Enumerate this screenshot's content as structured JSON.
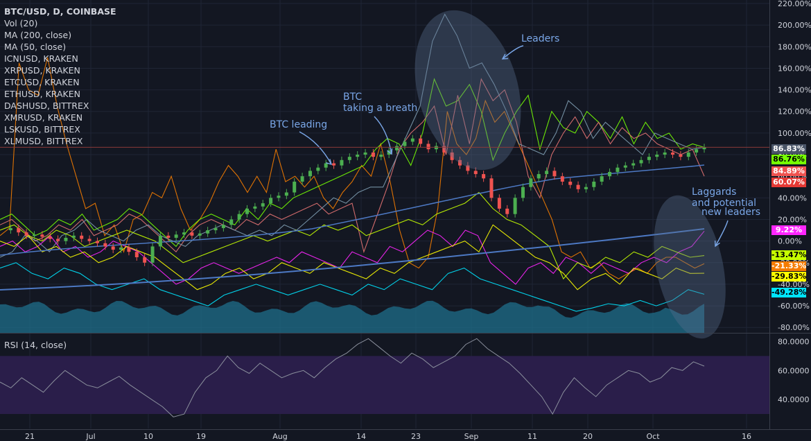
{
  "legend": {
    "title": "BTC/USD, D, COINBASE",
    "lines": [
      "Vol (20)",
      "MA (200, close)",
      "MA (50, close)",
      "ICNUSD, KRAKEN",
      "XRPUSD, KRAKEN",
      "ETCUSD, KRAKEN",
      "ETHUSD, KRAKEN",
      "DASHUSD, BITTREX",
      "XMRUSD, KRAKEN",
      "LSKUSD, BITTREX",
      "XLMUSD, BITTREX"
    ]
  },
  "rsi_label": "RSI (14, close)",
  "annotations": {
    "leaders": "Leaders",
    "btc_leading": "BTC leading",
    "btc_breath_1": "BTC",
    "btc_breath_2": "taking a breath",
    "laggards_1": "Laggards",
    "laggards_2": "and potential",
    "laggards_3": "new leaders"
  },
  "colors": {
    "background": "#131722",
    "grid": "#1f2535",
    "axis_text": "#d1d4dc",
    "up": "#26a69a",
    "candle_up": "#4caf50",
    "candle_down": "#ef5350",
    "orange": "#f57c00",
    "green": "#76ff03",
    "salmon": "#e57373",
    "slate": "#7e9cb0",
    "magenta": "#ff26ff",
    "yellow": "#ffff00",
    "lime": "#c6ff00",
    "cyan": "#00e5ff",
    "ma200": "#4d79c4",
    "ma50": "#4d79c4",
    "volume": "#1f6f8b",
    "rsi_band": "#2a1e4a",
    "annotation": "#7aa7e8",
    "highlight": "#5a6f8f"
  },
  "chart_data": [
    {
      "type": "line",
      "title": "BTC/USD, D, COINBASE",
      "y_axis_unit": "%",
      "ylim": [
        -85,
        220
      ],
      "yticks": [
        "220.00%",
        "200.00%",
        "180.00%",
        "160.00%",
        "140.00%",
        "120.00%",
        "100.00%",
        "80.00%",
        "60.00%",
        "40.00%",
        "20.00%",
        "0.00%",
        "-20.00%",
        "-40.00%",
        "-60.00%",
        "-80.00%"
      ],
      "x_tick_labels": [
        "21",
        "Jul",
        "10",
        "19",
        "Aug",
        "14",
        "23",
        "Sep",
        "11",
        "20",
        "Oct",
        "16"
      ],
      "last_value_labels": [
        {
          "text": "86.83%",
          "value": 86.83,
          "series": "BTC/USD"
        },
        {
          "text": "86.76%",
          "value": 86.76,
          "series": "green"
        },
        {
          "text": "84.89%",
          "value": 84.89,
          "series": "salmon"
        },
        {
          "text": "60.07%",
          "value": 60.07,
          "series": "salmon-dark"
        },
        {
          "text": "9.22%",
          "value": 9.22,
          "series": "magenta"
        },
        {
          "text": "-13.47%",
          "value": -13.47,
          "series": "lime"
        },
        {
          "text": "-21.33%",
          "value": -21.33,
          "series": "orange"
        },
        {
          "text": "-29.83%",
          "value": -29.83,
          "series": "yellow"
        },
        {
          "text": "-49.28%",
          "value": -49.28,
          "series": "cyan"
        }
      ],
      "series": [
        {
          "color": "orange",
          "values": [
            5,
            12,
            165,
            140,
            135,
            170,
            125,
            90,
            60,
            30,
            35,
            5,
            15,
            -10,
            20,
            25,
            45,
            40,
            60,
            30,
            10,
            20,
            35,
            55,
            70,
            60,
            45,
            60,
            45,
            85,
            55,
            60,
            50,
            60,
            40,
            30,
            45,
            55,
            70,
            60,
            90,
            55,
            10,
            -20,
            -25,
            -15,
            30,
            120,
            90,
            80,
            95,
            130,
            110,
            120,
            100,
            80,
            60,
            40,
            20,
            -10,
            -15,
            -10,
            -25,
            -20,
            -30,
            -35,
            -30,
            -25,
            -30,
            -20,
            -15,
            -15,
            -20,
            -25,
            -21
          ]
        },
        {
          "color": "green",
          "values": [
            20,
            25,
            15,
            5,
            10,
            20,
            15,
            25,
            10,
            15,
            20,
            30,
            25,
            15,
            5,
            -5,
            10,
            20,
            25,
            20,
            15,
            30,
            20,
            35,
            30,
            40,
            45,
            50,
            55,
            60,
            65,
            70,
            85,
            95,
            90,
            70,
            100,
            150,
            125,
            130,
            145,
            120,
            75,
            100,
            120,
            135,
            85,
            120,
            105,
            100,
            120,
            110,
            95,
            115,
            90,
            110,
            95,
            100,
            85,
            90,
            86.76
          ]
        },
        {
          "color": "salmon",
          "values": [
            15,
            20,
            10,
            0,
            5,
            15,
            10,
            20,
            5,
            10,
            15,
            25,
            20,
            10,
            0,
            -10,
            5,
            15,
            20,
            15,
            10,
            20,
            15,
            25,
            20,
            25,
            30,
            35,
            25,
            30,
            35,
            -10,
            20,
            50,
            85,
            100,
            110,
            125,
            80,
            135,
            90,
            150,
            130,
            140,
            110,
            60,
            40,
            80,
            100,
            115,
            95,
            110,
            90,
            105,
            95,
            100,
            90,
            85,
            80,
            84.89,
            60.07
          ]
        },
        {
          "color": "slate",
          "values": [
            -15,
            -10,
            5,
            0,
            -10,
            5,
            10,
            20,
            10,
            5,
            0,
            10,
            15,
            5,
            0,
            -5,
            5,
            10,
            15,
            10,
            5,
            10,
            5,
            15,
            10,
            20,
            30,
            40,
            35,
            45,
            50,
            50,
            75,
            100,
            125,
            185,
            210,
            190,
            160,
            165,
            145,
            120,
            90,
            85,
            80,
            100,
            130,
            120,
            95,
            110,
            100,
            90,
            80,
            100,
            95,
            90,
            85,
            86.83
          ]
        },
        {
          "color": "magenta",
          "values": [
            -5,
            0,
            -10,
            -5,
            5,
            -10,
            -5,
            -15,
            -10,
            0,
            -5,
            -10,
            -20,
            -30,
            -40,
            -35,
            -25,
            -20,
            -25,
            -30,
            -25,
            -20,
            -15,
            -20,
            -10,
            -15,
            -20,
            -25,
            -10,
            -15,
            -20,
            -5,
            -10,
            0,
            10,
            5,
            -5,
            10,
            5,
            -20,
            -30,
            -40,
            -25,
            -20,
            -30,
            -15,
            -20,
            -30,
            -20,
            -25,
            -30,
            -20,
            -15,
            -20,
            -10,
            -5,
            9.22
          ]
        },
        {
          "color": "yellow",
          "values": [
            0,
            -5,
            5,
            -10,
            -5,
            -15,
            -10,
            -20,
            -15,
            -5,
            -10,
            -15,
            -25,
            -35,
            -45,
            -40,
            -30,
            -25,
            -35,
            -30,
            -20,
            -25,
            -30,
            -20,
            -25,
            -30,
            -35,
            -25,
            -30,
            -20,
            -15,
            -10,
            -5,
            0,
            -10,
            15,
            5,
            -5,
            -15,
            -20,
            -30,
            -45,
            -35,
            -30,
            -40,
            -25,
            -30,
            -35,
            -25,
            -30,
            -29.83
          ]
        },
        {
          "color": "lime",
          "values": [
            10,
            15,
            5,
            0,
            10,
            5,
            -5,
            0,
            5,
            10,
            5,
            0,
            -10,
            -20,
            -15,
            -10,
            -5,
            0,
            5,
            0,
            5,
            10,
            5,
            15,
            10,
            15,
            5,
            10,
            15,
            20,
            15,
            25,
            30,
            35,
            45,
            30,
            20,
            15,
            5,
            -5,
            -35,
            -20,
            -25,
            -15,
            -20,
            -10,
            -15,
            -5,
            -10,
            -15,
            -13.47
          ]
        },
        {
          "color": "cyan",
          "values": [
            -25,
            -20,
            -30,
            -35,
            -25,
            -30,
            -40,
            -45,
            -40,
            -35,
            -45,
            -50,
            -55,
            -60,
            -50,
            -45,
            -40,
            -45,
            -50,
            -45,
            -40,
            -45,
            -50,
            -40,
            -45,
            -35,
            -40,
            -45,
            -30,
            -25,
            -35,
            -40,
            -45,
            -50,
            -55,
            -60,
            -65,
            -62,
            -58,
            -60,
            -55,
            -60,
            -55,
            -45,
            -49.28
          ]
        }
      ]
    },
    {
      "type": "line",
      "title": "RSI (14, close)",
      "ylim": [
        20,
        85
      ],
      "yticks": [
        "80.0000",
        "60.0000",
        "40.0000"
      ],
      "band": [
        30,
        70
      ],
      "values": [
        52,
        48,
        55,
        50,
        45,
        53,
        60,
        55,
        50,
        48,
        52,
        56,
        50,
        45,
        40,
        35,
        28,
        30,
        45,
        55,
        60,
        70,
        62,
        58,
        65,
        60,
        55,
        58,
        60,
        55,
        62,
        68,
        72,
        78,
        82,
        76,
        70,
        65,
        72,
        68,
        62,
        66,
        70,
        78,
        82,
        75,
        70,
        65,
        58,
        50,
        42,
        30,
        45,
        55,
        48,
        42,
        50,
        55,
        60,
        58,
        52,
        55,
        62,
        60,
        66,
        63
      ]
    }
  ]
}
